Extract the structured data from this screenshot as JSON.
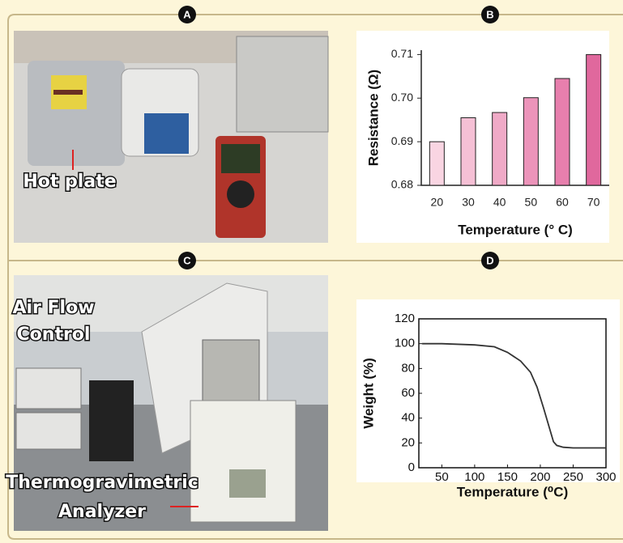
{
  "panels": {
    "labels": [
      "A",
      "B",
      "C",
      "D"
    ]
  },
  "photo_a": {
    "caption": "Hot plate"
  },
  "photo_c": {
    "captions": [
      "Air Flow",
      "Control",
      "Thermogravimetric",
      "Analyzer"
    ]
  },
  "chart_data": [
    {
      "type": "bar",
      "x_label": "Temperature (° C)",
      "y_label": "Resistance (Ω)",
      "categories": [
        "20",
        "30",
        "40",
        "50",
        "60",
        "70"
      ],
      "values": [
        0.69,
        0.6955,
        0.6967,
        0.7001,
        0.7045,
        0.71
      ],
      "colors": [
        "#f9d5e2",
        "#f5c0d5",
        "#f0aac7",
        "#ec94ba",
        "#e77fad",
        "#e0689d"
      ],
      "ylim": [
        0.68,
        0.711
      ],
      "yticks": [
        0.68,
        0.69,
        {
          "value": 0.7,
          "label": "0.70"
        },
        0.71
      ]
    },
    {
      "type": "line",
      "x_label": "Temperature (⁰C)",
      "y_label": "Weight (%)",
      "x": [
        20,
        50,
        100,
        130,
        150,
        170,
        185,
        195,
        205,
        215,
        220,
        225,
        235,
        250,
        300
      ],
      "values": [
        100,
        100,
        99,
        97.5,
        93,
        86,
        77,
        65,
        48,
        30,
        21,
        18,
        16.5,
        16,
        16
      ],
      "color": "#333333",
      "xlim": [
        15,
        300
      ],
      "xticks": [
        50,
        100,
        150,
        200,
        250,
        300
      ],
      "ylim": [
        0,
        120
      ],
      "yticks": [
        0,
        20,
        40,
        60,
        80,
        100,
        120
      ]
    }
  ]
}
